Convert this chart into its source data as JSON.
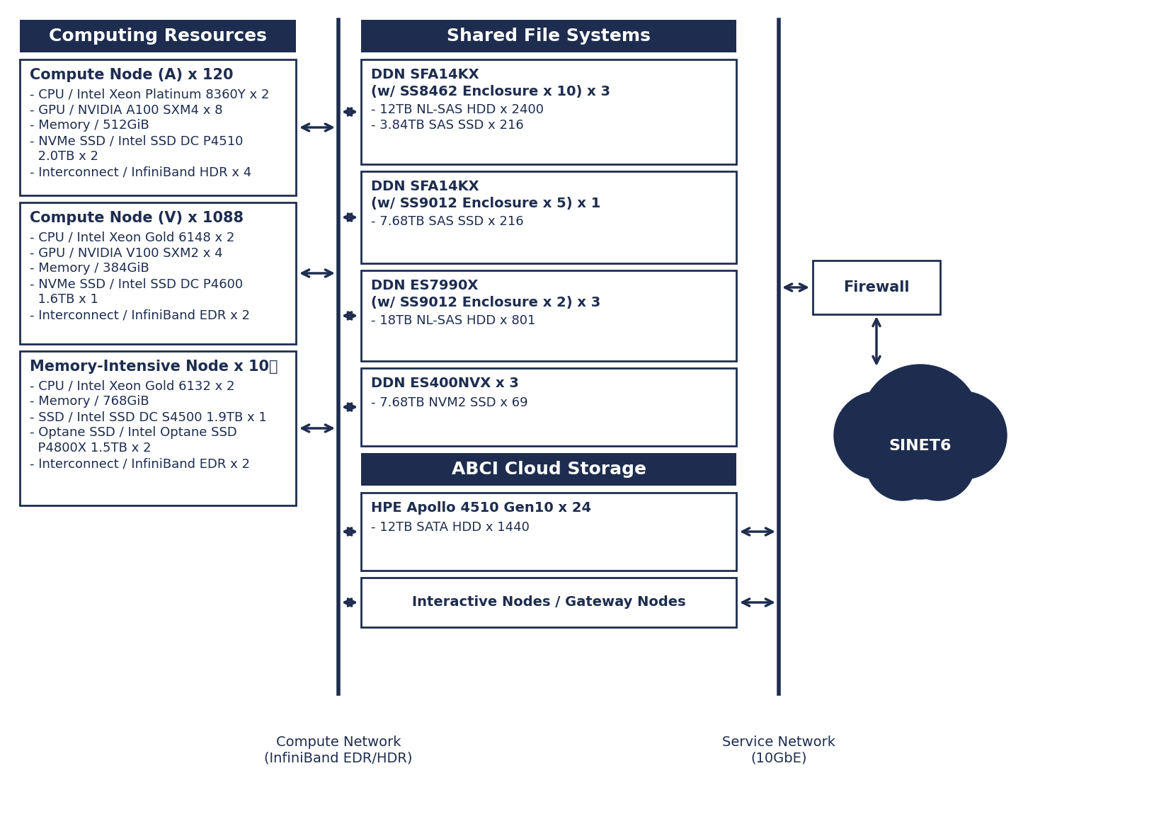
{
  "bg_color": "#ffffff",
  "dark_navy": "#1e2d4f",
  "compute_node_a_title": "Compute Node (A) x 120",
  "compute_node_a_items": [
    "- CPU / Intel Xeon Platinum 8360Y x 2",
    "- GPU / NVIDIA A100 SXM4 x 8",
    "- Memory / 512GiB",
    "- NVMe SSD / Intel SSD DC P4510",
    "  2.0TB x 2",
    "- Interconnect / InfiniBand HDR x 4"
  ],
  "compute_node_v_title": "Compute Node (V) x 1088",
  "compute_node_v_items": [
    "- CPU / Intel Xeon Gold 6148 x 2",
    "- GPU / NVIDIA V100 SXM2 x 4",
    "- Memory / 384GiB",
    "- NVMe SSD / Intel SSD DC P4600",
    "  1.6TB x 1",
    "- Interconnect / InfiniBand EDR x 2"
  ],
  "memory_node_title": "Memory-Intensive Node x 10台",
  "memory_node_items": [
    "- CPU / Intel Xeon Gold 6132 x 2",
    "- Memory / 768GiB",
    "- SSD / Intel SSD DC S4500 1.9TB x 1",
    "- Optane SSD / Intel Optane SSD",
    "  P4800X 1.5TB x 2",
    "- Interconnect / InfiniBand EDR x 2"
  ],
  "computing_resources_header": "Computing Resources",
  "shared_file_systems_header": "Shared File Systems",
  "abci_cloud_header": "ABCI Cloud Storage",
  "ddn1_title": "DDN SFA14KX\n(w/ SS8462 Enclosure x 10) x 3",
  "ddn1_items": [
    "- 12TB NL-SAS HDD x 2400",
    "- 3.84TB SAS SSD x 216"
  ],
  "ddn2_title": "DDN SFA14KX\n(w/ SS9012 Enclosure x 5) x 1",
  "ddn2_items": [
    "- 7.68TB SAS SSD x 216"
  ],
  "ddn3_title": "DDN ES7990X\n(w/ SS9012 Enclosure x 2) x 3",
  "ddn3_items": [
    "- 18TB NL-SAS HDD x 801"
  ],
  "ddn4_title": "DDN ES400NVX x 3",
  "ddn4_items": [
    "- 7.68TB NVM2 SSD x 69"
  ],
  "hpe_title": "HPE Apollo 4510 Gen10 x 24",
  "hpe_items": [
    "- 12TB SATA HDD x 1440"
  ],
  "interactive_title": "Interactive Nodes / Gateway Nodes",
  "firewall_label": "Firewall",
  "sinet_label": "SINET6",
  "compute_network_label": "Compute Network\n(InfiniBand EDR/HDR)",
  "service_network_label": "Service Network\n(10GbE)"
}
